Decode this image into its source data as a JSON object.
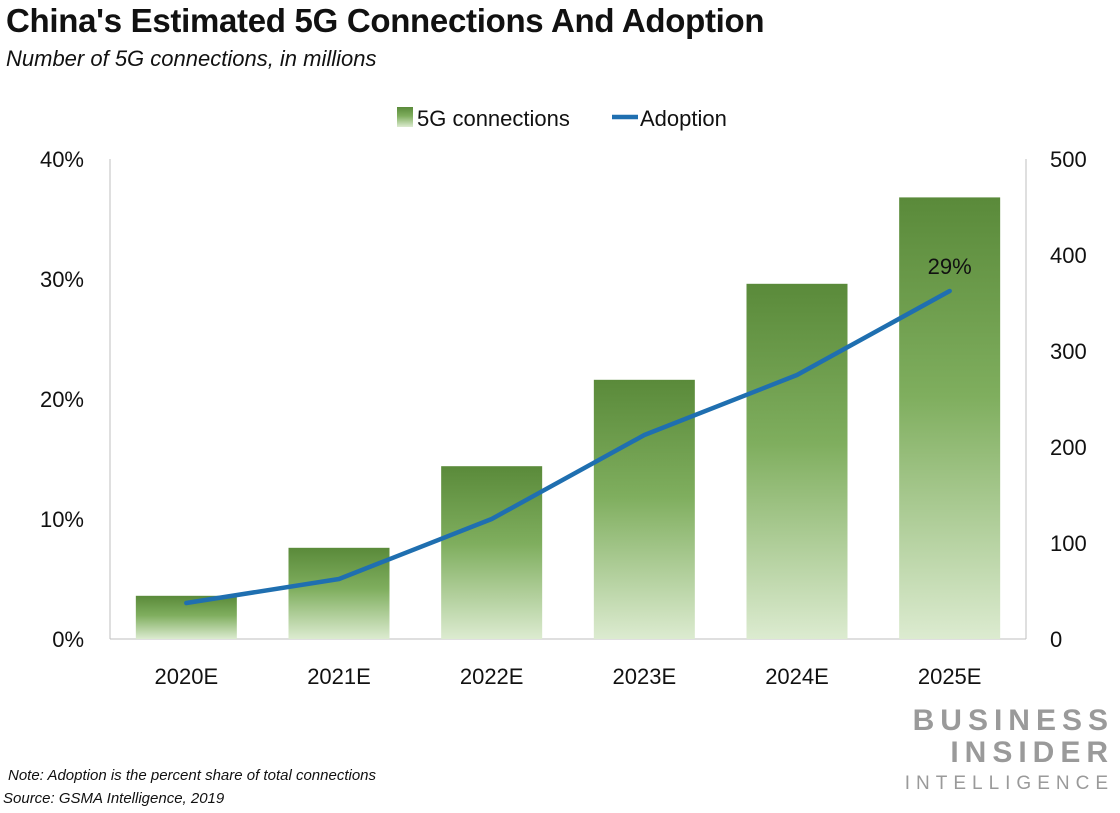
{
  "title": "China's Estimated 5G Connections And Adoption",
  "subtitle": "Number of 5G connections, in millions",
  "note": "Note: Adoption is the percent share of total connections",
  "source": "Source: GSMA Intelligence, 2019",
  "logo": {
    "line1": "BUSINESS",
    "line2": "INSIDER",
    "line3": "INTELLIGENCE"
  },
  "colors": {
    "bar_dark": "#5a8a3a",
    "bar_light": "#dcebd0",
    "line": "#1f6fb0"
  },
  "chart_data": {
    "type": "bar",
    "categories": [
      "2020E",
      "2021E",
      "2022E",
      "2023E",
      "2024E",
      "2025E"
    ],
    "series": [
      {
        "name": "5G connections",
        "type": "bar",
        "axis": "right",
        "values": [
          45,
          95,
          180,
          270,
          370,
          460
        ]
      },
      {
        "name": "Adoption",
        "type": "line",
        "axis": "left",
        "values": [
          3,
          5,
          10,
          17,
          22,
          29
        ]
      }
    ],
    "left_axis": {
      "min": 0,
      "max": 40,
      "ticks": [
        "0%",
        "10%",
        "20%",
        "30%",
        "40%"
      ]
    },
    "right_axis": {
      "min": 0,
      "max": 500,
      "ticks": [
        "0",
        "100",
        "200",
        "300",
        "400",
        "500"
      ]
    },
    "annotations": [
      {
        "series": "Adoption",
        "index": 5,
        "label": "29%"
      }
    ],
    "legend_position": "top-center",
    "grid": false
  }
}
